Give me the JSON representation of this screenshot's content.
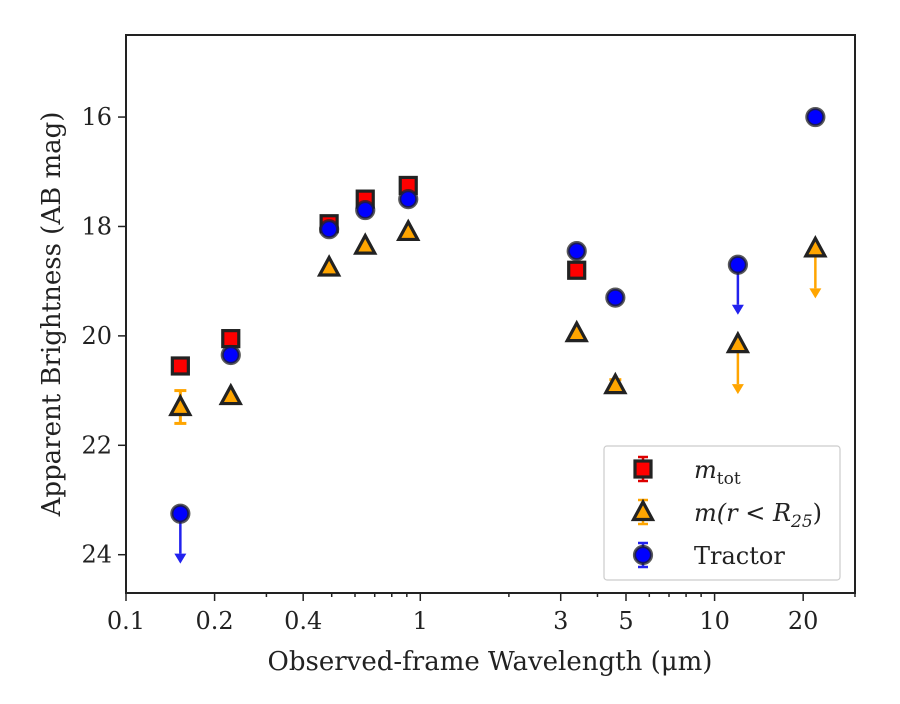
{
  "chart_data": {
    "type": "scatter",
    "xlabel": "Observed-frame Wavelength (μm)",
    "ylabel": "Apparent Brightness (AB mag)",
    "x_scale": "log",
    "xlim": [
      0.1,
      30
    ],
    "ylim": [
      24.7,
      14.5
    ],
    "y_inverted": true,
    "grid": false,
    "legend_position": "lower-right",
    "xticks": [
      0.1,
      0.2,
      0.4,
      1,
      3,
      5,
      10,
      20
    ],
    "xtick_labels": [
      "0.1",
      "0.2",
      "0.4",
      "1",
      "3",
      "5",
      "10",
      "20"
    ],
    "yticks": [
      16,
      18,
      20,
      22,
      24
    ],
    "ytick_labels": [
      "16",
      "18",
      "20",
      "22",
      "24"
    ],
    "series": [
      {
        "name": "m_tot",
        "legend_label": "m",
        "legend_sub": "tot",
        "marker": "square",
        "face_color": "#ff0000",
        "edge_color": "#222222",
        "errbar_color": "#dd0000",
        "points": [
          {
            "x": 0.153,
            "y": 20.55
          },
          {
            "x": 0.227,
            "y": 20.05
          },
          {
            "x": 0.49,
            "y": 17.95
          },
          {
            "x": 0.65,
            "y": 17.5
          },
          {
            "x": 0.91,
            "y": 17.25
          },
          {
            "x": 3.4,
            "y": 18.8
          }
        ]
      },
      {
        "name": "m(r < R25)",
        "legend_label": "m(r < R",
        "legend_sub": "25",
        "legend_tail": ")",
        "marker": "triangle",
        "face_color": "#ffa500",
        "edge_color": "#222222",
        "errbar_color": "#ffa500",
        "points": [
          {
            "x": 0.153,
            "y": 21.3,
            "err": 0.3
          },
          {
            "x": 0.227,
            "y": 21.1
          },
          {
            "x": 0.49,
            "y": 18.75
          },
          {
            "x": 0.65,
            "y": 18.35
          },
          {
            "x": 0.91,
            "y": 18.1
          },
          {
            "x": 3.4,
            "y": 19.95
          },
          {
            "x": 4.6,
            "y": 20.9,
            "err": 0.1
          },
          {
            "x": 12.0,
            "y": 20.15,
            "upper_limit": true
          },
          {
            "x": 22.0,
            "y": 18.4,
            "upper_limit": true
          }
        ]
      },
      {
        "name": "Tractor",
        "legend_label": "Tractor",
        "marker": "circle",
        "face_color": "#0000ff",
        "edge_color": "#222222",
        "errbar_color": "#2222ee",
        "points": [
          {
            "x": 0.153,
            "y": 23.25,
            "upper_limit": true
          },
          {
            "x": 0.227,
            "y": 20.35
          },
          {
            "x": 0.49,
            "y": 18.05
          },
          {
            "x": 0.65,
            "y": 17.7
          },
          {
            "x": 0.91,
            "y": 17.5
          },
          {
            "x": 3.4,
            "y": 18.45
          },
          {
            "x": 4.6,
            "y": 19.3
          },
          {
            "x": 12.0,
            "y": 18.7,
            "upper_limit": true
          },
          {
            "x": 22.0,
            "y": 16.0
          }
        ]
      }
    ]
  }
}
